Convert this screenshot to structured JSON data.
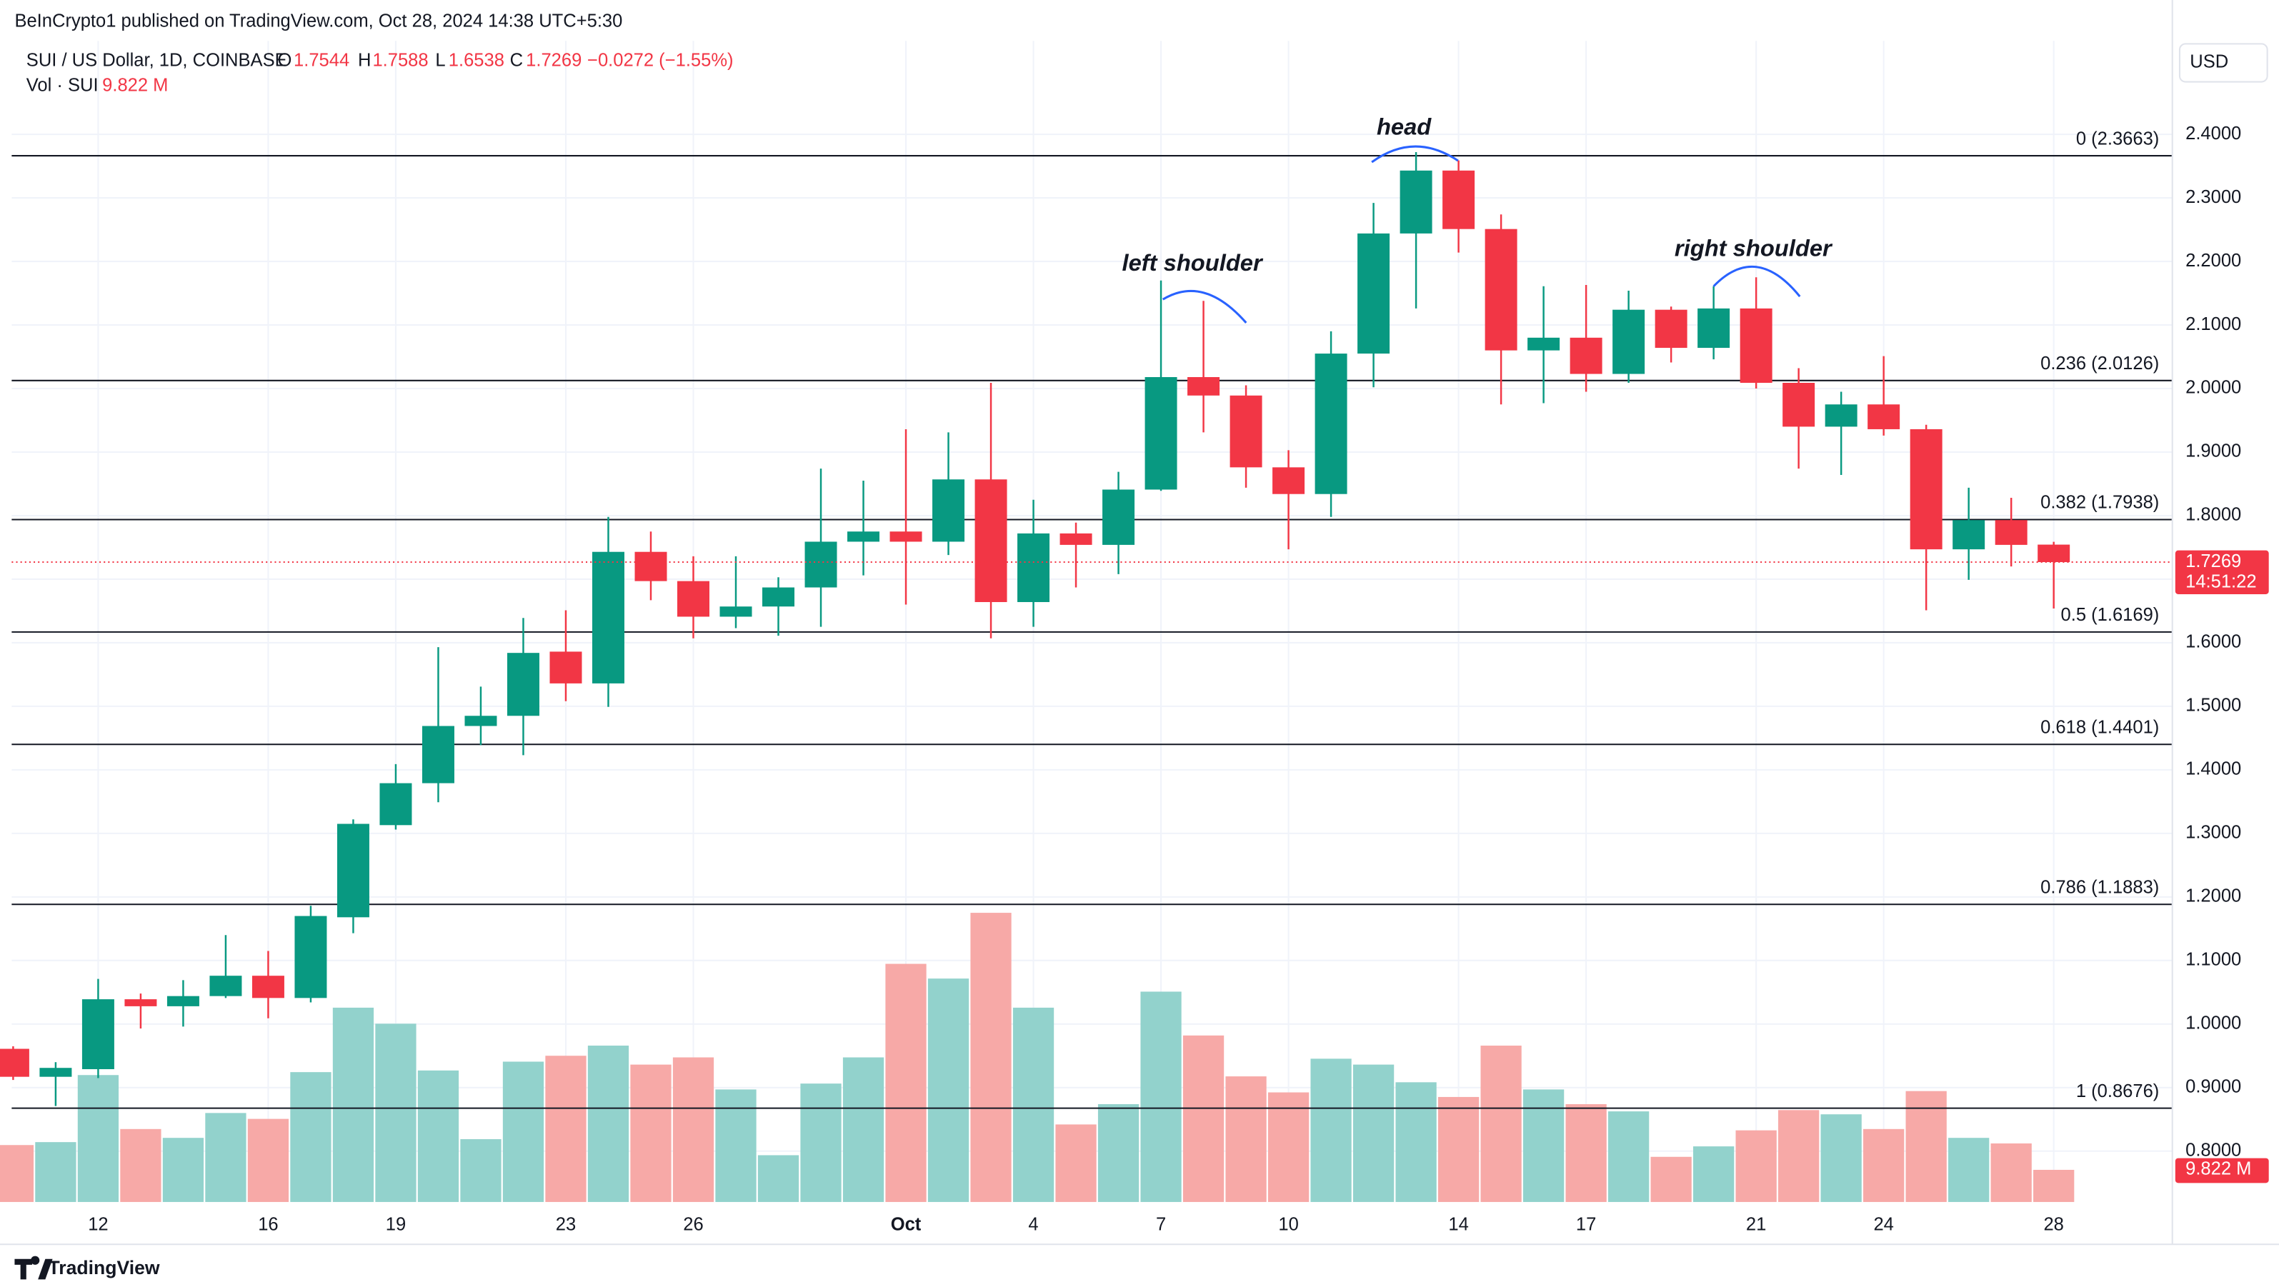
{
  "header": {
    "published": "BeInCrypto1 published on TradingView.com, Oct 28, 2024 14:38 UTC+5:30",
    "symbol": "SUI / US Dollar, 1D, COINBASE",
    "o": "O",
    "h": "H",
    "l": "L",
    "c": "C",
    "change": "−0.0272 (−1.55%)",
    "vol": "Vol · SUI",
    "currency": "USD",
    "countdown": "14:51:22",
    "brand": "TradingView"
  },
  "chart_data": {
    "type": "candlestick",
    "categories": [
      null,
      null,
      "12",
      null,
      null,
      null,
      "16",
      null,
      null,
      "19",
      null,
      null,
      null,
      "23",
      null,
      null,
      "26",
      null,
      null,
      null,
      null,
      "Oct",
      null,
      null,
      "4",
      null,
      null,
      "7",
      null,
      null,
      "10",
      null,
      null,
      null,
      "14",
      null,
      null,
      "17",
      null,
      null,
      null,
      "21",
      null,
      null,
      "24",
      null,
      null,
      null,
      "28"
    ],
    "open": [
      0.961,
      0.917,
      0.929,
      1.039,
      1.028,
      1.044,
      1.076,
      1.041,
      1.168,
      1.313,
      1.379,
      1.469,
      1.485,
      1.586,
      1.536,
      1.743,
      1.697,
      1.641,
      1.657,
      1.687,
      1.759,
      1.775,
      1.759,
      1.857,
      1.664,
      1.772,
      1.754,
      1.841,
      2.018,
      1.989,
      1.876,
      1.834,
      2.055,
      2.244,
      2.343,
      2.251,
      2.06,
      2.08,
      2.023,
      2.124,
      2.064,
      2.126,
      2.009,
      1.94,
      1.975,
      1.936,
      1.747,
      1.793,
      1.7544
    ],
    "high": [
      0.965,
      0.94,
      1.071,
      1.048,
      1.069,
      1.14,
      1.115,
      1.186,
      1.322,
      1.409,
      1.593,
      1.531,
      1.639,
      1.651,
      1.798,
      1.775,
      1.736,
      1.736,
      1.703,
      1.874,
      1.855,
      1.936,
      1.931,
      2.009,
      1.825,
      1.789,
      1.869,
      2.17,
      2.138,
      2.005,
      1.903,
      2.09,
      2.292,
      2.372,
      2.359,
      2.274,
      2.161,
      2.163,
      2.154,
      2.129,
      2.161,
      2.175,
      2.032,
      1.995,
      2.051,
      1.943,
      1.844,
      1.828,
      1.7588
    ],
    "low": [
      0.912,
      0.871,
      0.915,
      0.993,
      0.996,
      1.041,
      1.009,
      1.034,
      1.143,
      1.306,
      1.349,
      1.439,
      1.423,
      1.508,
      1.499,
      1.667,
      1.607,
      1.623,
      1.611,
      1.625,
      1.706,
      1.66,
      1.738,
      1.607,
      1.625,
      1.687,
      1.708,
      1.839,
      1.931,
      1.844,
      1.747,
      1.798,
      2.002,
      2.126,
      2.214,
      1.975,
      1.977,
      1.995,
      2.009,
      2.041,
      2.046,
      2.0,
      1.874,
      1.864,
      1.926,
      1.651,
      1.699,
      1.72,
      1.6538
    ],
    "close": [
      0.917,
      0.931,
      1.039,
      1.028,
      1.044,
      1.076,
      1.041,
      1.17,
      1.315,
      1.379,
      1.469,
      1.485,
      1.584,
      1.536,
      1.743,
      1.697,
      1.641,
      1.657,
      1.687,
      1.759,
      1.775,
      1.759,
      1.857,
      1.664,
      1.772,
      1.754,
      1.841,
      2.018,
      1.989,
      1.876,
      1.834,
      2.055,
      2.244,
      2.343,
      2.251,
      2.06,
      2.08,
      2.023,
      2.124,
      2.064,
      2.126,
      2.009,
      1.94,
      1.975,
      1.936,
      1.747,
      1.793,
      1.754,
      1.7269
    ],
    "volume": [
      17.4,
      18.3,
      38.8,
      22.3,
      19.6,
      27.2,
      25.4,
      39.7,
      59.4,
      54.5,
      40.2,
      19.2,
      42.9,
      44.7,
      47.8,
      42.0,
      44.2,
      34.4,
      14.3,
      36.2,
      44.2,
      72.8,
      68.3,
      88.4,
      59.4,
      23.7,
      29.9,
      64.3,
      50.9,
      38.4,
      33.5,
      43.8,
      42.0,
      36.6,
      32.1,
      47.8,
      34.4,
      29.9,
      27.7,
      13.8,
      17.0,
      21.9,
      28.1,
      26.8,
      22.3,
      33.9,
      19.6,
      17.9,
      9.822
    ],
    "volume_label": "9.822 M",
    "up_color": "#089981",
    "down_color": "#f23645",
    "volume_up_color": "#92d2cc",
    "volume_down_color": "#f7a9a7",
    "ylim": [
      0.72,
      2.547
    ],
    "yticks": [
      {
        "value": 0.8,
        "label": "0.8000"
      },
      {
        "value": 0.9,
        "label": "0.9000"
      },
      {
        "value": 1.0,
        "label": "1.0000"
      },
      {
        "value": 1.1,
        "label": "1.1000"
      },
      {
        "value": 1.2,
        "label": "1.2000"
      },
      {
        "value": 1.3,
        "label": "1.3000"
      },
      {
        "value": 1.4,
        "label": "1.4000"
      },
      {
        "value": 1.5,
        "label": "1.5000"
      },
      {
        "value": 1.6,
        "label": "1.6000"
      },
      {
        "value": 1.7,
        "label": "1.7000"
      },
      {
        "value": 1.8,
        "label": "1.8000"
      },
      {
        "value": 1.9,
        "label": "1.9000"
      },
      {
        "value": 2.0,
        "label": "2.0000"
      },
      {
        "value": 2.1,
        "label": "2.1000"
      },
      {
        "value": 2.2,
        "label": "2.2000"
      },
      {
        "value": 2.3,
        "label": "2.3000"
      },
      {
        "value": 2.4,
        "label": "2.4000"
      }
    ],
    "grid": true,
    "levels": [
      {
        "value": 2.3663,
        "label": "0 (2.3663)"
      },
      {
        "value": 2.0126,
        "label": "0.236 (2.0126)"
      },
      {
        "value": 1.7938,
        "label": "0.382 (1.7938)"
      },
      {
        "value": 1.6169,
        "label": "0.5 (1.6169)"
      },
      {
        "value": 1.4401,
        "label": "0.618 (1.4401)"
      },
      {
        "value": 1.1883,
        "label": "0.786 (1.1883)"
      },
      {
        "value": 0.8676,
        "label": "1 (0.8676)"
      }
    ],
    "annotations": [
      "left shoulder",
      "head",
      "right shoulder"
    ]
  }
}
